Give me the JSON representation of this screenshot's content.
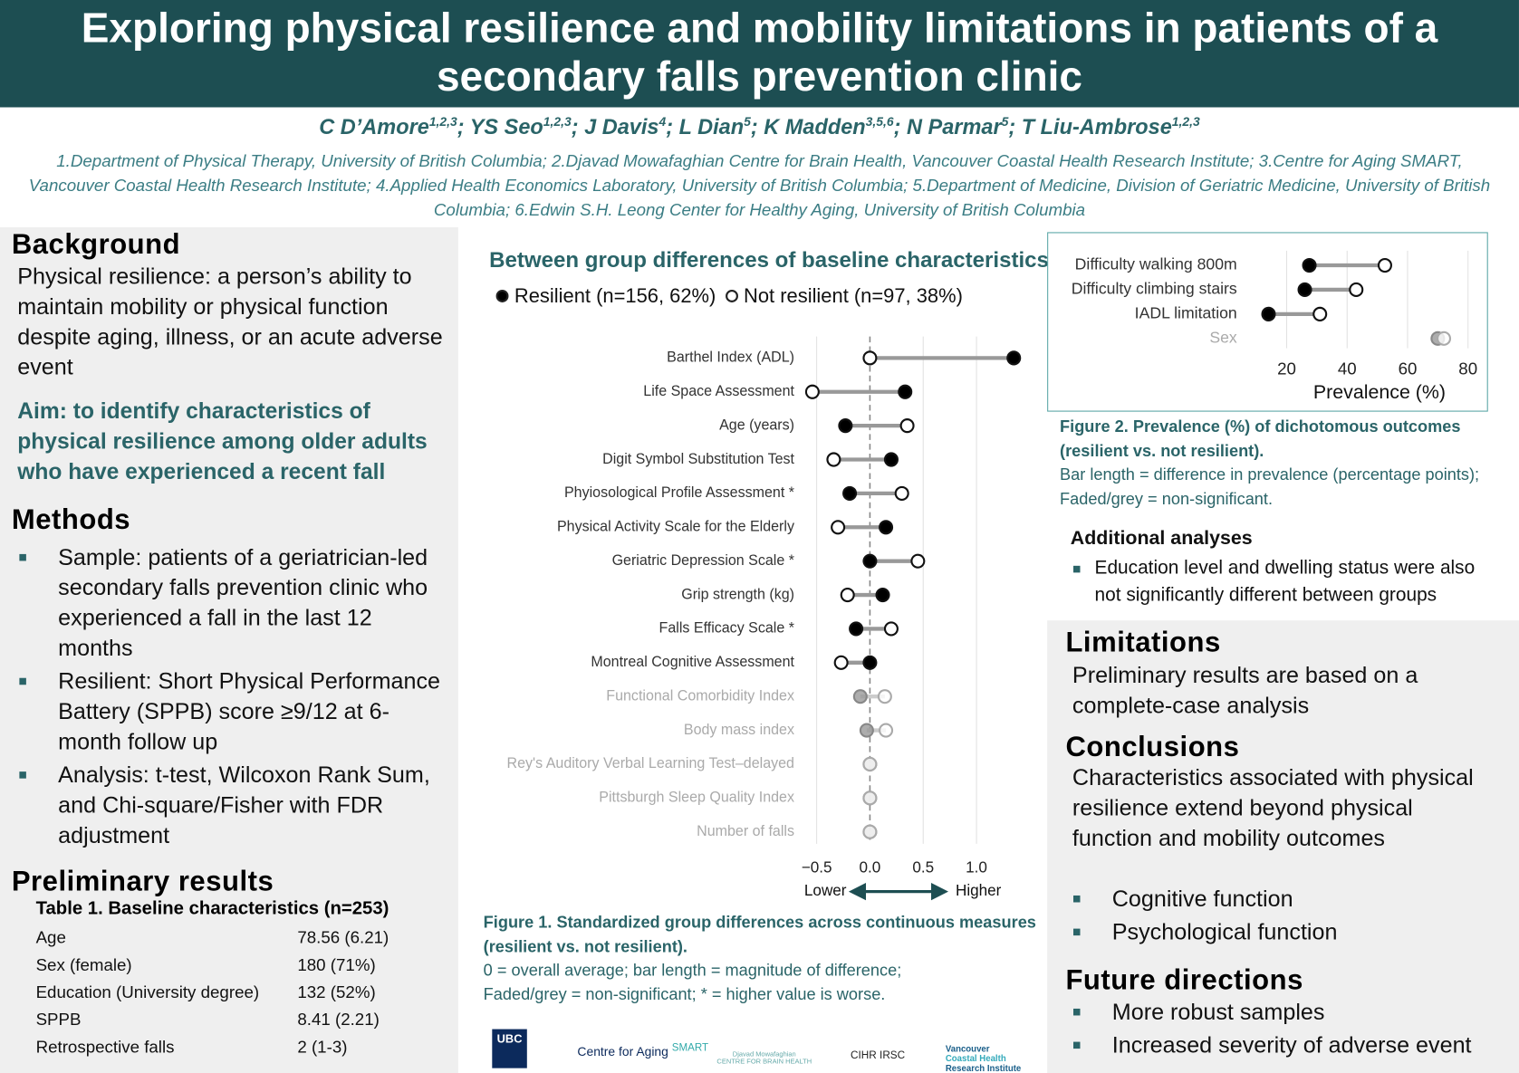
{
  "header": {
    "title": "Exploring physical resilience and mobility limitations in patients of a secondary falls prevention clinic",
    "authors": [
      {
        "name": "C D’Amore",
        "sup": "1,2,3"
      },
      {
        "name": "YS Seo",
        "sup": "1,2,3"
      },
      {
        "name": "J Davis",
        "sup": "4"
      },
      {
        "name": "L Dian",
        "sup": "5"
      },
      {
        "name": "K Madden",
        "sup": "3,5,6"
      },
      {
        "name": "N Parmar",
        "sup": "5"
      },
      {
        "name": "T Liu-Ambrose",
        "sup": "1,2,3"
      }
    ],
    "author_separator": ";",
    "affiliations": "1.Department of Physical Therapy, University of British Columbia; 2.Djavad Mowafaghian Centre for Brain Health, Vancouver Coastal Health Research Institute; 3.Centre for Aging SMART, Vancouver Coastal Health Research Institute; 4.Applied Health Economics Laboratory, University of British Columbia; 5.Department of Medicine, Division of Geriatric Medicine, University of British Columbia; 6.Edwin S.H. Leong Center for Healthy Aging, University of British Columbia"
  },
  "background": {
    "heading": "Background",
    "text": "Physical resilience: a person’s ability to maintain mobility or physical function despite aging, illness, or an acute adverse event",
    "aim": "Aim: to identify characteristics of physical resilience among older adults who have experienced a recent fall"
  },
  "methods": {
    "heading": "Methods",
    "items": [
      "Sample: patients of a geriatrician-led secondary falls prevention clinic who experienced a fall in the last 12 months",
      "Resilient: Short Physical Performance Battery (SPPB) score ≥9/12 at 6-month follow up",
      "Analysis: t-test, Wilcoxon Rank Sum, and Chi-square/Fisher with FDR adjustment"
    ]
  },
  "results": {
    "heading": "Preliminary results",
    "table": {
      "title": "Table 1. Baseline characteristics (n=253)",
      "rows": [
        [
          "Age",
          "78.56 (6.21)"
        ],
        [
          "Sex (female)",
          "180 (71%)"
        ],
        [
          "Education (University degree)",
          "132 (52%)"
        ],
        [
          "SPPB",
          "8.41 (2.21)"
        ],
        [
          "Retrospective falls",
          "2 (1-3)"
        ]
      ]
    }
  },
  "additional": {
    "heading": "Additional analyses",
    "items": [
      "Education level and dwelling status were also not significantly different between groups"
    ]
  },
  "limitations": {
    "heading": "Limitations",
    "text": "Preliminary results are based on a complete-case analysis"
  },
  "conclusions": {
    "heading": "Conclusions",
    "text": "Characteristics associated with physical resilience extend beyond physical function and mobility outcomes",
    "items": [
      "Cognitive function",
      "Psychological function"
    ]
  },
  "future": {
    "heading": "Future directions",
    "items": [
      "More robust samples",
      "Increased severity of adverse event"
    ]
  },
  "logos": [
    "UBC",
    "Centre for Aging",
    "SMART",
    "Djavad Mowafaghian",
    "CENTRE FOR BRAIN HEALTH",
    "CIHR IRSC",
    "Vancouver",
    "Coastal Health",
    "Research Institute"
  ],
  "chart_data": [
    {
      "type": "dumbbell",
      "title": "Between group differences of baseline characteristics",
      "categories": [
        "Barthel Index (ADL)",
        "Life Space Assessment",
        "Age (years)",
        "Digit Symbol Substitution Test",
        "Phyiosological Profile Assessment *",
        "Physical Activity Scale for the Elderly",
        "Geriatric Depression Scale *",
        "Grip strength (kg)",
        "Falls Efficacy Scale *",
        "Montreal Cognitive Assessment",
        "Functional Comorbidity Index",
        "Body mass index",
        "Rey's Auditory Verbal Learning Test–delayed",
        "Pittsburgh Sleep Quality Index",
        "Number of falls"
      ],
      "series": [
        {
          "name": "Resilient (n=156, 62%)",
          "color": "#000000",
          "values": [
            1.35,
            0.33,
            -0.23,
            0.2,
            -0.19,
            0.15,
            0,
            0.12,
            -0.13,
            0,
            -0.09,
            -0.03,
            0,
            0,
            0
          ]
        },
        {
          "name": "Not resilient (n=97, 38%)",
          "color": "#ffffff",
          "values": [
            0,
            -0.54,
            0.35,
            -0.34,
            0.3,
            -0.3,
            0.45,
            -0.21,
            0.2,
            -0.27,
            0.14,
            0.15,
            0,
            0,
            0
          ]
        }
      ],
      "significant": [
        true,
        true,
        true,
        true,
        true,
        true,
        true,
        true,
        true,
        true,
        false,
        false,
        false,
        false,
        false
      ],
      "xlim": [
        -0.6,
        1.4
      ],
      "xticks": [
        {
          "value": -0.5,
          "label": "−0.5"
        },
        {
          "value": 0,
          "label": "0.0"
        },
        0.5,
        {
          "value": 1,
          "label": "1.0"
        }
      ],
      "axis_low": "Lower",
      "axis_high": "Higher",
      "grid": true,
      "caption": "Figure 1. Standardized group differences across continuous measures (resilient vs. not resilient).",
      "notes": [
        "0 = overall average; bar length = magnitude of difference;",
        "Faded/grey = non-significant; * = higher value is worse."
      ]
    },
    {
      "type": "dumbbell",
      "categories": [
        "Difficulty walking 800m",
        "Difficulty climbing stairs",
        "IADL limitation",
        "Sex"
      ],
      "series": [
        {
          "name": "Resilient (n=156, 62%)",
          "color": "#000000",
          "values": [
            27.5,
            26,
            14,
            70
          ]
        },
        {
          "name": "Not resilient (n=97, 38%)",
          "color": "#ffffff",
          "values": [
            52.5,
            43,
            31,
            72
          ]
        }
      ],
      "significant": [
        true,
        true,
        true,
        false
      ],
      "xlim": [
        10,
        85
      ],
      "xticks": [
        20,
        40,
        60,
        80
      ],
      "xlabel": "Prevalence (%)",
      "grid": true,
      "caption": "Figure 2. Prevalence (%) of dichotomous outcomes (resilient vs. not resilient).",
      "notes": [
        "Bar length = difference in prevalence (percentage points);",
        "Faded/grey = non-significant."
      ]
    }
  ]
}
